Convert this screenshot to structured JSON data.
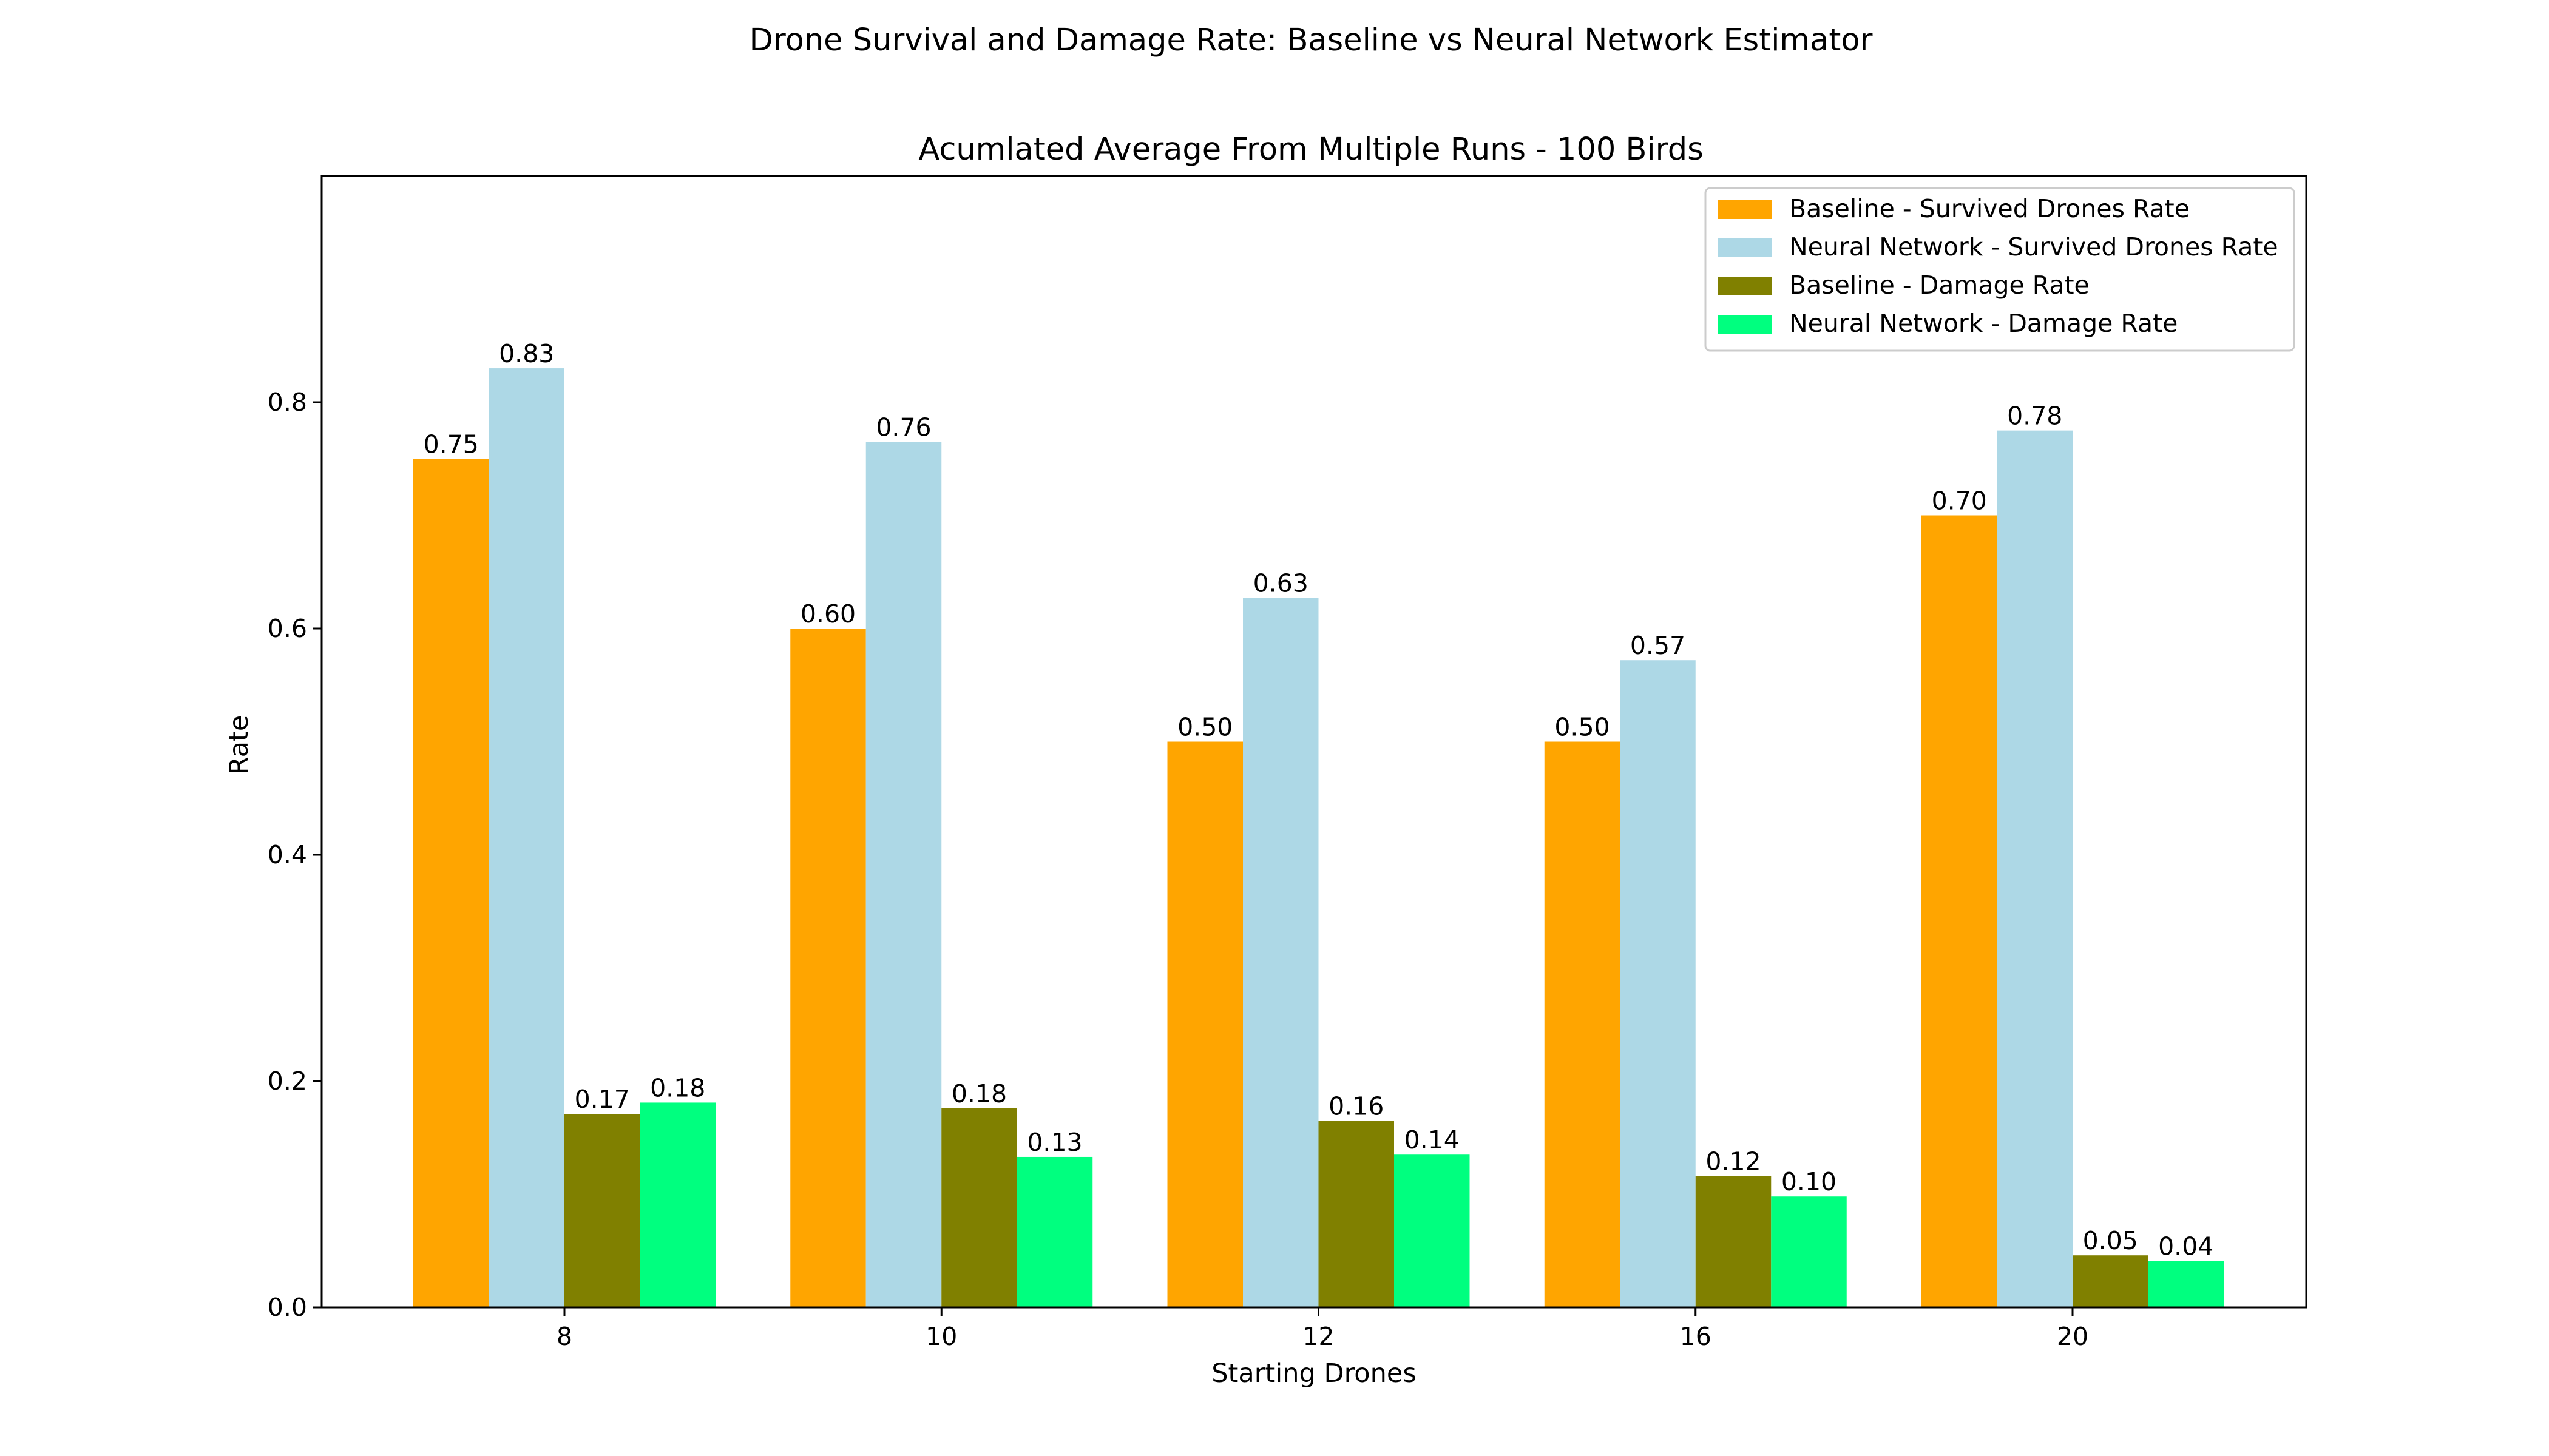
{
  "chart_data": {
    "type": "bar",
    "suptitle": "Drone Survival and Damage Rate: Baseline vs Neural Network Estimator",
    "title": "Acumlated Average From Multiple Runs - 100 Birds",
    "xlabel": "Starting Drones",
    "ylabel": "Rate",
    "categories": [
      "8",
      "10",
      "12",
      "16",
      "20"
    ],
    "ylim": [
      0,
      1.0
    ],
    "yticks": [
      0.0,
      0.2,
      0.4,
      0.6,
      0.8
    ],
    "ytick_labels": [
      "0.0",
      "0.2",
      "0.4",
      "0.6",
      "0.8"
    ],
    "grid": false,
    "legend_position": "top-right",
    "series": [
      {
        "name": "Baseline - Survived Drones Rate",
        "color": "#FFA500",
        "values": [
          0.75,
          0.6,
          0.5,
          0.5,
          0.7
        ],
        "labels": [
          "0.75",
          "0.60",
          "0.50",
          "0.50",
          "0.70"
        ]
      },
      {
        "name": "Neural Network - Survived Drones Rate",
        "color": "#ADD8E6",
        "values": [
          0.83,
          0.765,
          0.627,
          0.572,
          0.775
        ],
        "labels": [
          "0.83",
          "0.76",
          "0.63",
          "0.57",
          "0.78"
        ]
      },
      {
        "name": "Baseline - Damage Rate",
        "color": "#808000",
        "values": [
          0.171,
          0.176,
          0.165,
          0.116,
          0.046
        ],
        "labels": [
          "0.17",
          "0.18",
          "0.16",
          "0.12",
          "0.05"
        ]
      },
      {
        "name": "Neural Network - Damage Rate",
        "color": "#00FF7F",
        "values": [
          0.181,
          0.133,
          0.135,
          0.098,
          0.041
        ],
        "labels": [
          "0.18",
          "0.13",
          "0.14",
          "0.10",
          "0.04"
        ]
      }
    ]
  }
}
